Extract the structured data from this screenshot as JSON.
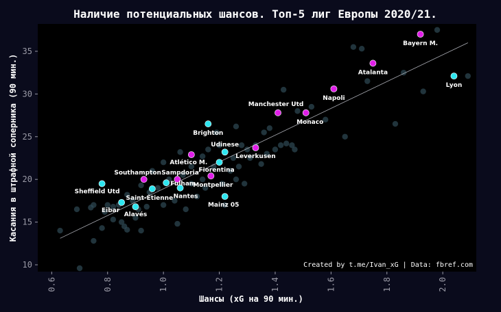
{
  "chart_data": {
    "type": "scatter",
    "title": "Наличие потенциальных шансов. Топ-5 лиг Европы 2020/21.",
    "xlabel": "Шансы (xG на 90 мин.)",
    "ylabel": "Касания в штрафной соперника (90 мин.)",
    "credit": "Created by t.me/Ivan_xG | Data: fbref.com",
    "xlim": [
      0.55,
      2.12
    ],
    "ylim": [
      9.2,
      38.2
    ],
    "xticks": [
      "0.6",
      "0.8",
      "1.0",
      "1.2",
      "1.4",
      "1.6",
      "1.8",
      "2.0"
    ],
    "yticks": [
      "10",
      "15",
      "20",
      "25",
      "30",
      "35"
    ],
    "grid": false,
    "legend": "none",
    "colors": {
      "background": "#0a0b1c",
      "plot_background": "#000000",
      "other": "#2f4a56",
      "cyan": "#2ee6f0",
      "magenta": "#e01ee8",
      "trend": "#aeb0b8"
    },
    "trend_line": [
      [
        0.63,
        13.1
      ],
      [
        2.09,
        36.0
      ]
    ],
    "highlighted": [
      {
        "team": "Bayern M.",
        "x": 1.92,
        "y": 37.0,
        "color": "magenta"
      },
      {
        "team": "Atalanta",
        "x": 1.75,
        "y": 33.6,
        "color": "magenta"
      },
      {
        "team": "Lyon",
        "x": 2.04,
        "y": 32.1,
        "color": "cyan"
      },
      {
        "team": "Napoli",
        "x": 1.61,
        "y": 30.6,
        "color": "magenta"
      },
      {
        "team": "Manchester Utd",
        "x": 1.41,
        "y": 27.8,
        "color": "magenta"
      },
      {
        "team": "Monaco",
        "x": 1.51,
        "y": 27.8,
        "color": "magenta"
      },
      {
        "team": "Brighton",
        "x": 1.16,
        "y": 26.5,
        "color": "cyan"
      },
      {
        "team": "Leverkusen",
        "x": 1.33,
        "y": 23.7,
        "color": "magenta"
      },
      {
        "team": "Udinese",
        "x": 1.22,
        "y": 23.2,
        "color": "cyan"
      },
      {
        "team": "Atlético M.",
        "x": 1.1,
        "y": 22.9,
        "color": "magenta"
      },
      {
        "team": "Fiorentina",
        "x": 1.2,
        "y": 22.0,
        "color": "cyan"
      },
      {
        "team": "Sampdoria",
        "x": 1.05,
        "y": 20.0,
        "color": "magenta"
      },
      {
        "team": "Southampton",
        "x": 0.93,
        "y": 20.0,
        "color": "magenta"
      },
      {
        "team": "Montpellier",
        "x": 1.17,
        "y": 20.4,
        "color": "magenta"
      },
      {
        "team": "Sheffield Utd",
        "x": 0.78,
        "y": 19.5,
        "color": "cyan"
      },
      {
        "team": "Fulham",
        "x": 1.01,
        "y": 19.6,
        "color": "cyan"
      },
      {
        "team": "Nantes",
        "x": 1.06,
        "y": 19.0,
        "color": "cyan"
      },
      {
        "team": "Saint-Étienne",
        "x": 0.96,
        "y": 18.9,
        "color": "cyan"
      },
      {
        "team": "Mainz 05",
        "x": 1.22,
        "y": 18.0,
        "color": "cyan"
      },
      {
        "team": "Eibar",
        "x": 0.85,
        "y": 17.3,
        "color": "cyan"
      },
      {
        "team": "Alavés",
        "x": 0.9,
        "y": 16.8,
        "color": "cyan"
      }
    ],
    "others": [
      [
        0.63,
        14.0
      ],
      [
        0.7,
        9.6
      ],
      [
        0.69,
        16.5
      ],
      [
        0.74,
        16.7
      ],
      [
        0.75,
        17.0
      ],
      [
        0.75,
        12.8
      ],
      [
        0.78,
        14.3
      ],
      [
        0.79,
        16.2
      ],
      [
        0.8,
        17.0
      ],
      [
        0.82,
        16.8
      ],
      [
        0.82,
        15.3
      ],
      [
        0.84,
        17.0
      ],
      [
        0.85,
        15.0
      ],
      [
        0.86,
        14.5
      ],
      [
        0.87,
        18.2
      ],
      [
        0.87,
        14.1
      ],
      [
        0.89,
        17.5
      ],
      [
        0.9,
        15.5
      ],
      [
        0.91,
        16.5
      ],
      [
        0.92,
        14.0
      ],
      [
        0.92,
        19.3
      ],
      [
        0.94,
        16.8
      ],
      [
        0.95,
        18.5
      ],
      [
        0.98,
        19.0
      ],
      [
        1.0,
        17.0
      ],
      [
        1.02,
        20.0
      ],
      [
        1.04,
        17.5
      ],
      [
        1.05,
        14.8
      ],
      [
        1.07,
        20.5
      ],
      [
        1.08,
        16.5
      ],
      [
        1.1,
        21.5
      ],
      [
        1.1,
        19.5
      ],
      [
        1.12,
        18.0
      ],
      [
        1.14,
        20.0
      ],
      [
        1.15,
        19.0
      ],
      [
        1.16,
        23.5
      ],
      [
        1.18,
        21.5
      ],
      [
        1.19,
        25.5
      ],
      [
        1.2,
        24.0
      ],
      [
        1.21,
        19.5
      ],
      [
        1.22,
        17.0
      ],
      [
        1.24,
        21.0
      ],
      [
        1.25,
        22.5
      ],
      [
        1.26,
        20.0
      ],
      [
        1.27,
        21.5
      ],
      [
        1.28,
        24.0
      ],
      [
        1.29,
        19.5
      ],
      [
        1.3,
        23.5
      ],
      [
        1.31,
        22.5
      ],
      [
        1.33,
        24.0
      ],
      [
        1.35,
        21.8
      ],
      [
        1.37,
        23.0
      ],
      [
        1.38,
        26.0
      ],
      [
        1.4,
        23.5
      ],
      [
        1.42,
        24.0
      ],
      [
        1.43,
        30.5
      ],
      [
        1.44,
        24.2
      ],
      [
        1.46,
        24.0
      ],
      [
        1.47,
        23.5
      ],
      [
        1.48,
        28.0
      ],
      [
        1.53,
        28.5
      ],
      [
        1.58,
        27.0
      ],
      [
        1.65,
        25.0
      ],
      [
        1.68,
        35.5
      ],
      [
        1.71,
        35.3
      ],
      [
        1.73,
        31.5
      ],
      [
        1.83,
        26.5
      ],
      [
        1.86,
        32.5
      ],
      [
        1.93,
        30.3
      ],
      [
        1.98,
        37.5
      ],
      [
        2.09,
        32.1
      ],
      [
        1.14,
        22.7
      ],
      [
        1.06,
        23.2
      ],
      [
        1.0,
        22.0
      ],
      [
        0.96,
        21.0
      ],
      [
        1.36,
        25.5
      ],
      [
        1.26,
        26.2
      ]
    ]
  }
}
